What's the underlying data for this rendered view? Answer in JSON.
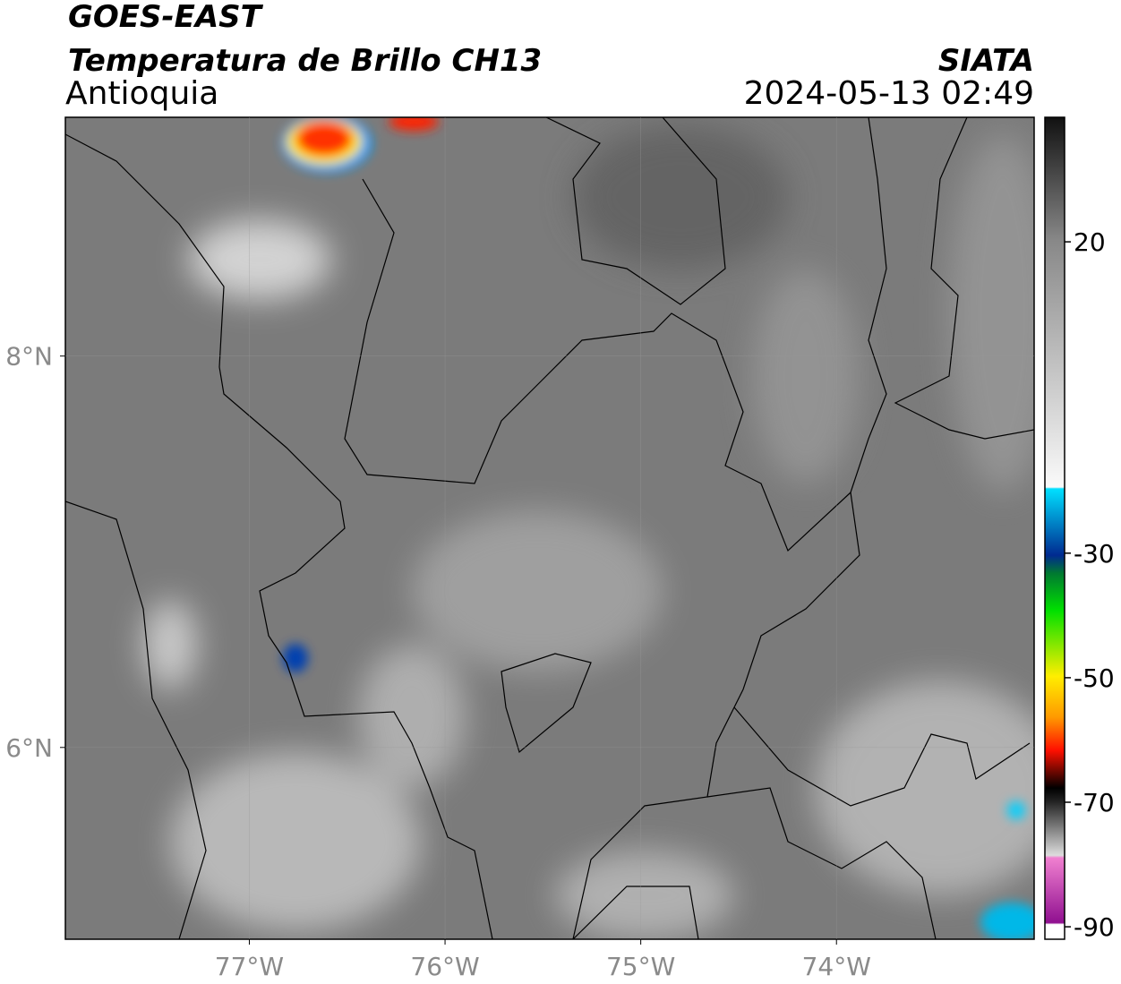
{
  "header": {
    "title": "GOES-EAST",
    "subtitle": "Temperatura de Brillo CH13",
    "region": "Antioquia",
    "source": "SIATA",
    "datetime": "2024-05-13 02:49"
  },
  "map": {
    "xlim": [
      -77.94,
      -72.99
    ],
    "ylim": [
      5.02,
      9.22
    ],
    "xticks": [
      {
        "value": -77,
        "label": "77°W"
      },
      {
        "value": -76,
        "label": "76°W"
      },
      {
        "value": -75,
        "label": "75°W"
      },
      {
        "value": -74,
        "label": "74°W"
      }
    ],
    "yticks": [
      {
        "value": 8,
        "label": "8°N"
      },
      {
        "value": 6,
        "label": "6°N"
      }
    ],
    "grid": true
  },
  "colorbar": {
    "lim": [
      -92,
      40
    ],
    "ticks": [
      20,
      -30,
      -50,
      -70,
      -90
    ]
  }
}
